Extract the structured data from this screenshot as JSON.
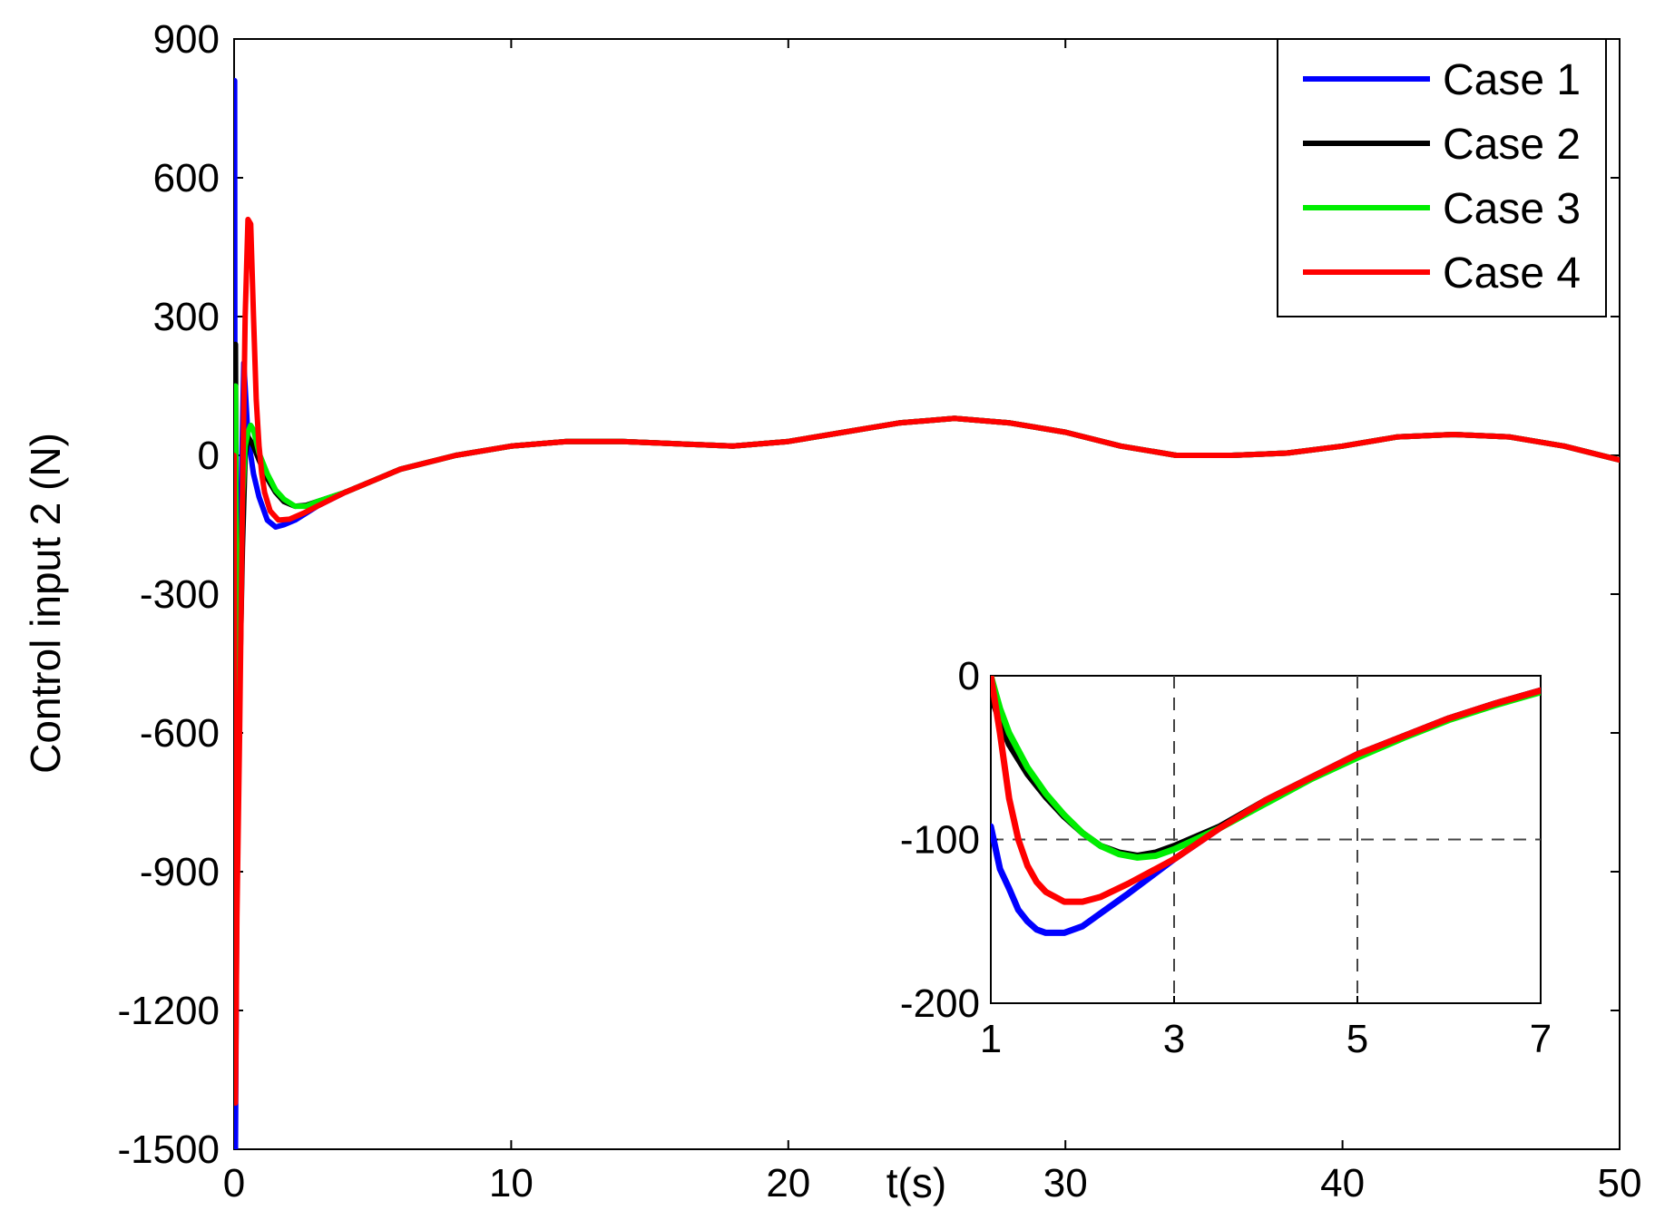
{
  "chart_data": [
    {
      "type": "line",
      "role": "main",
      "xlabel": "t(s)",
      "ylabel": "Control input 2 (N)",
      "xlim": [
        0,
        50
      ],
      "ylim": [
        -1500,
        900
      ],
      "xticks": [
        0,
        10,
        20,
        30,
        40,
        50
      ],
      "yticks": [
        -1500,
        -1200,
        -900,
        -600,
        -300,
        0,
        300,
        600,
        900
      ],
      "grid": false,
      "legend": "top-right",
      "series": [
        {
          "name": "Case 1",
          "color": "#0000ff",
          "x": [
            0,
            0.02,
            0.05,
            0.1,
            0.15,
            0.25,
            0.35,
            0.5,
            0.7,
            0.9,
            1.2,
            1.5,
            1.8,
            2.2,
            3,
            4,
            5,
            6,
            8,
            10,
            12,
            14,
            16,
            18,
            20,
            22,
            24,
            26,
            28,
            30,
            32,
            34,
            36,
            38,
            40,
            42,
            44,
            46,
            48,
            50
          ],
          "y": [
            0,
            810,
            -1500,
            -900,
            -500,
            -100,
            200,
            40,
            -40,
            -90,
            -140,
            -155,
            -150,
            -140,
            -110,
            -80,
            -55,
            -30,
            0,
            20,
            30,
            30,
            25,
            20,
            30,
            50,
            70,
            80,
            70,
            50,
            20,
            0,
            0,
            5,
            20,
            40,
            45,
            40,
            20,
            -10
          ]
        },
        {
          "name": "Case 2",
          "color": "#000000",
          "x": [
            0,
            0.05,
            0.1,
            0.2,
            0.3,
            0.4,
            0.5,
            0.7,
            0.9,
            1.2,
            1.5,
            1.8,
            2.2,
            2.6,
            3,
            4,
            5,
            6,
            8,
            10,
            12,
            14,
            16,
            18,
            20,
            22,
            24,
            26,
            28,
            30,
            32,
            34,
            36,
            38,
            40,
            42,
            44,
            46,
            48,
            50
          ],
          "y": [
            0,
            240,
            -650,
            -500,
            -200,
            0,
            40,
            20,
            -10,
            -50,
            -80,
            -100,
            -110,
            -108,
            -100,
            -80,
            -55,
            -30,
            0,
            20,
            30,
            30,
            25,
            20,
            30,
            50,
            70,
            80,
            70,
            50,
            20,
            0,
            0,
            5,
            20,
            40,
            45,
            40,
            20,
            -10
          ]
        },
        {
          "name": "Case 3",
          "color": "#00ee00",
          "x": [
            0,
            0.05,
            0.1,
            0.2,
            0.3,
            0.4,
            0.5,
            0.6,
            0.7,
            0.9,
            1.2,
            1.5,
            1.8,
            2.2,
            2.6,
            3,
            4,
            5,
            6,
            8,
            10,
            12,
            14,
            16,
            18,
            20,
            22,
            24,
            26,
            28,
            30,
            32,
            34,
            36,
            38,
            40,
            42,
            44,
            46,
            48,
            50
          ],
          "y": [
            0,
            150,
            -580,
            -400,
            -100,
            20,
            50,
            65,
            55,
            5,
            -40,
            -75,
            -95,
            -110,
            -110,
            -100,
            -80,
            -55,
            -30,
            0,
            20,
            30,
            30,
            25,
            20,
            30,
            50,
            70,
            80,
            70,
            50,
            20,
            0,
            0,
            5,
            20,
            40,
            45,
            40,
            20,
            -10
          ]
        },
        {
          "name": "Case 4",
          "color": "#ff0000",
          "x": [
            0,
            0.05,
            0.1,
            0.2,
            0.3,
            0.4,
            0.5,
            0.6,
            0.7,
            0.8,
            0.9,
            1.0,
            1.1,
            1.3,
            1.6,
            2,
            2.5,
            3,
            4,
            5,
            6,
            8,
            10,
            12,
            14,
            16,
            18,
            20,
            22,
            24,
            26,
            28,
            30,
            32,
            34,
            36,
            38,
            40,
            42,
            44,
            46,
            48,
            50
          ],
          "y": [
            0,
            -1400,
            -1000,
            -600,
            -100,
            300,
            510,
            500,
            300,
            120,
            20,
            -40,
            -80,
            -120,
            -140,
            -138,
            -125,
            -110,
            -80,
            -55,
            -30,
            0,
            20,
            30,
            30,
            25,
            20,
            30,
            50,
            70,
            80,
            70,
            50,
            20,
            0,
            0,
            5,
            20,
            40,
            45,
            40,
            20,
            -10
          ]
        }
      ]
    },
    {
      "type": "line",
      "role": "inset",
      "xlim": [
        1,
        7
      ],
      "ylim": [
        -200,
        0
      ],
      "xticks": [
        1,
        3,
        5,
        7
      ],
      "yticks": [
        -200,
        -100,
        0
      ],
      "grid": true,
      "series": [
        {
          "name": "Case 1",
          "color": "#0000ff",
          "x": [
            1,
            1.1,
            1.2,
            1.3,
            1.4,
            1.5,
            1.6,
            1.8,
            2.0,
            2.2,
            2.5,
            3,
            3.5,
            4,
            4.5,
            5,
            5.5,
            6,
            6.5,
            7
          ],
          "y": [
            -92,
            -118,
            -130,
            -143,
            -150,
            -155,
            -157,
            -157,
            -153,
            -145,
            -133,
            -112,
            -93,
            -76,
            -62,
            -48,
            -37,
            -26,
            -17,
            -9
          ]
        },
        {
          "name": "Case 2",
          "color": "#000000",
          "x": [
            1,
            1.1,
            1.2,
            1.4,
            1.6,
            1.8,
            2.0,
            2.2,
            2.4,
            2.6,
            2.8,
            3,
            3.5,
            4,
            4.5,
            5,
            5.5,
            6,
            6.5,
            7
          ],
          "y": [
            -12,
            -28,
            -42,
            -60,
            -74,
            -86,
            -96,
            -104,
            -108,
            -110,
            -108,
            -104,
            -92,
            -76,
            -62,
            -48,
            -37,
            -26,
            -17,
            -9
          ]
        },
        {
          "name": "Case 3",
          "color": "#00ee00",
          "x": [
            1,
            1.1,
            1.2,
            1.4,
            1.6,
            1.8,
            2.0,
            2.2,
            2.4,
            2.6,
            2.8,
            3,
            3.5,
            4,
            4.5,
            5,
            5.5,
            6,
            6.5,
            7
          ],
          "y": [
            0,
            -20,
            -35,
            -56,
            -72,
            -85,
            -96,
            -104,
            -109,
            -111,
            -110,
            -106,
            -93,
            -78,
            -63,
            -50,
            -38,
            -27,
            -18,
            -10
          ]
        },
        {
          "name": "Case 4",
          "color": "#ff0000",
          "x": [
            1,
            1.1,
            1.2,
            1.3,
            1.4,
            1.5,
            1.6,
            1.8,
            2.0,
            2.2,
            2.5,
            3,
            3.5,
            4,
            4.5,
            5,
            5.5,
            6,
            6.5,
            7
          ],
          "y": [
            0,
            -35,
            -75,
            -100,
            -116,
            -126,
            -132,
            -138,
            -138,
            -135,
            -127,
            -112,
            -93,
            -76,
            -62,
            -48,
            -37,
            -26,
            -17,
            -9
          ]
        }
      ]
    }
  ]
}
